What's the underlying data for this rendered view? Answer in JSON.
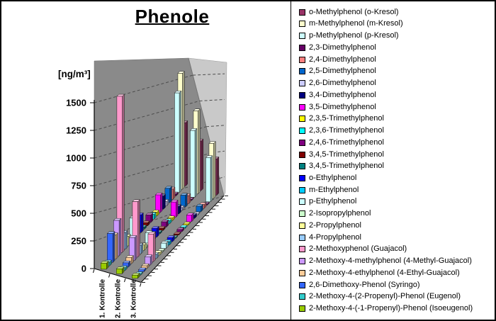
{
  "frame": {
    "border_color": "#000000",
    "background": "#FFFFFF"
  },
  "chart_data": {
    "type": "bar3d",
    "title": "Phenole",
    "ylabel": "[ng/m³]",
    "ylim": [
      0,
      1500
    ],
    "y_ticks": [
      0,
      250,
      500,
      750,
      1000,
      1250,
      1500
    ],
    "categories": [
      "1. Kontrolle",
      "2. Kontrolle",
      "3. Kontrolle"
    ],
    "legend_position": "right",
    "grid": true,
    "walls": {
      "back": "#8A8A8A",
      "side": "#C9C9C9",
      "gridline": "#4D4D4D"
    },
    "series": [
      {
        "name": "o-Methylphenol (o-Kresol)",
        "color": "#993366",
        "values": [
          880,
          690,
          505
        ]
      },
      {
        "name": "m-Methylphenol (m-Kresol)",
        "color": "#FFFFCC",
        "values": [
          1580,
          1130,
          750
        ]
      },
      {
        "name": "p-Methylphenol (p-Kresol)",
        "color": "#CCFFFF",
        "values": [
          1330,
          890,
          590
        ]
      },
      {
        "name": "2,3-Dimethylphenol",
        "color": "#660066",
        "values": [
          25,
          15,
          8
        ]
      },
      {
        "name": "2,4-Dimethylphenol",
        "color": "#FF8080",
        "values": [
          130,
          105,
          50
        ]
      },
      {
        "name": "2,5-Dimethylphenol",
        "color": "#0066CC",
        "values": [
          180,
          150,
          70
        ]
      },
      {
        "name": "2,6-Dimethylphenol",
        "color": "#CCCCFF",
        "values": [
          55,
          35,
          15
        ]
      },
      {
        "name": "3,4-Dimethylphenol",
        "color": "#000080",
        "values": [
          160,
          90,
          40
        ]
      },
      {
        "name": "3,5-Dimethylphenol",
        "color": "#FF00FF",
        "values": [
          210,
          180,
          80
        ]
      },
      {
        "name": "2,3,5-Trimethylphenol",
        "color": "#FFFF00",
        "values": [
          45,
          30,
          14
        ]
      },
      {
        "name": "2,3,6-Trimethylphenol",
        "color": "#00FFFF",
        "values": [
          55,
          35,
          16
        ]
      },
      {
        "name": "2,4,6-Trimethylphenol",
        "color": "#800080",
        "values": [
          85,
          60,
          25
        ]
      },
      {
        "name": "3,4,5-Trimethylphenol",
        "color": "#800000",
        "values": [
          35,
          25,
          10
        ]
      },
      {
        "name": "3,4,5-Trimethylphenol",
        "color": "#008080",
        "values": [
          25,
          18,
          8
        ]
      },
      {
        "name": "o-Ethylphenol",
        "color": "#0000FF",
        "values": [
          190,
          95,
          45
        ]
      },
      {
        "name": "m-Ethylphenol",
        "color": "#00CCFF",
        "values": [
          140,
          75,
          35
        ]
      },
      {
        "name": "p-Ethylphenol",
        "color": "#CCFFFF",
        "values": [
          220,
          115,
          55
        ]
      },
      {
        "name": "2-Isopropylphenol",
        "color": "#CCFFCC",
        "values": [
          35,
          22,
          10
        ]
      },
      {
        "name": "2-Propylphenol",
        "color": "#FFFF99",
        "values": [
          95,
          55,
          25
        ]
      },
      {
        "name": "4-Propylphenol",
        "color": "#99CCFF",
        "values": [
          165,
          85,
          40
        ]
      },
      {
        "name": "2-Methoxyphenol (Guajacol)",
        "color": "#FF99CC",
        "values": [
          1520,
          540,
          270
        ]
      },
      {
        "name": "2-Methoxy-4-methylphenol (4-Methyl-Guajacol)",
        "color": "#CC99FF",
        "values": [
          340,
          220,
          80
        ]
      },
      {
        "name": "2-Methoxy-4-ethylphenol (4-Ethyl-Guajacol)",
        "color": "#FFCC99",
        "values": [
          230,
          60,
          25
        ]
      },
      {
        "name": "2,6-Dimethoxy-Phenol (Syringo)",
        "color": "#3366FF",
        "values": [
          270,
          40,
          18
        ]
      },
      {
        "name": "2-Methoxy-4-(2-Propenyl)-Phenol (Eugenol)",
        "color": "#33CCCC",
        "values": [
          35,
          25,
          12
        ]
      },
      {
        "name": "2-Methoxy-4-(-1-Propenyl)-Phenol (Isoeugenol)",
        "color": "#99CC00",
        "values": [
          55,
          45,
          30
        ]
      }
    ]
  }
}
